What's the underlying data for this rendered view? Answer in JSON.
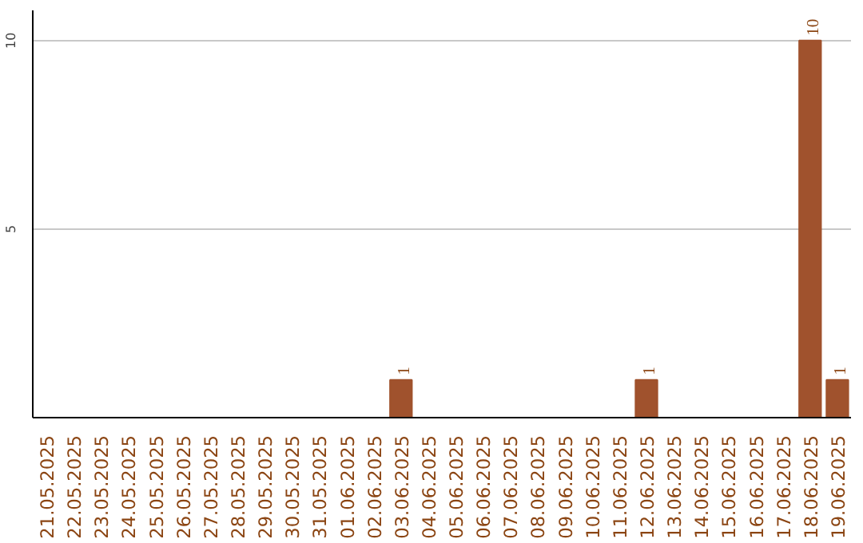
{
  "chart_data": {
    "type": "bar",
    "categories": [
      "21.05.2025",
      "22.05.2025",
      "23.05.2025",
      "24.05.2025",
      "25.05.2025",
      "26.05.2025",
      "27.05.2025",
      "28.05.2025",
      "29.05.2025",
      "30.05.2025",
      "31.05.2025",
      "01.06.2025",
      "02.06.2025",
      "03.06.2025",
      "04.06.2025",
      "05.06.2025",
      "06.06.2025",
      "07.06.2025",
      "08.06.2025",
      "09.06.2025",
      "10.06.2025",
      "11.06.2025",
      "12.06.2025",
      "13.06.2025",
      "14.06.2025",
      "15.06.2025",
      "16.06.2025",
      "17.06.2025",
      "18.06.2025",
      "19.06.2025"
    ],
    "values": [
      0,
      0,
      0,
      0,
      0,
      0,
      0,
      0,
      0,
      0,
      0,
      0,
      0,
      1,
      0,
      0,
      0,
      0,
      0,
      0,
      0,
      0,
      1,
      0,
      0,
      0,
      0,
      0,
      10,
      1
    ],
    "value_labels": [
      null,
      null,
      null,
      null,
      null,
      null,
      null,
      null,
      null,
      null,
      null,
      null,
      null,
      "1",
      null,
      null,
      null,
      null,
      null,
      null,
      null,
      null,
      "1",
      null,
      null,
      null,
      null,
      null,
      "10",
      "1"
    ],
    "color": "#a0522d",
    "ylim": [
      0,
      10.8
    ],
    "yticks": [
      5,
      10
    ],
    "grid": "y"
  }
}
